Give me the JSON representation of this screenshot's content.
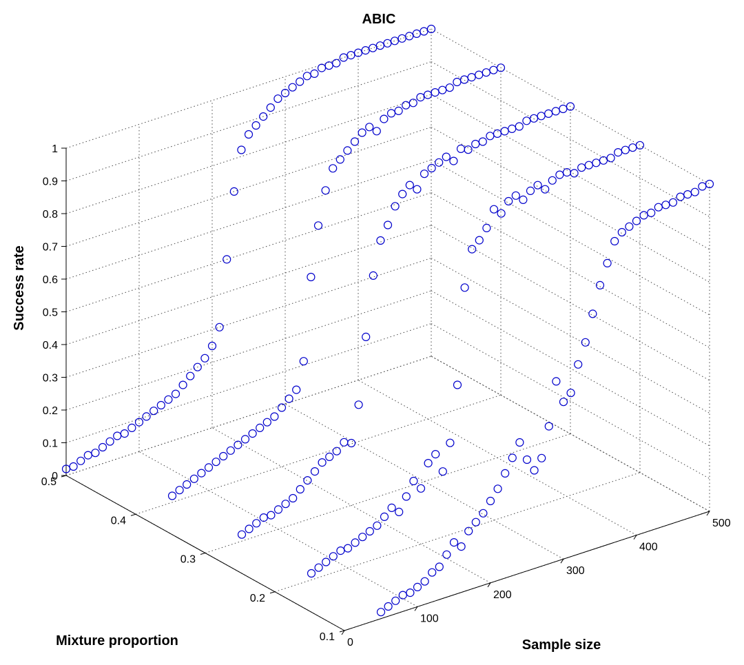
{
  "chart_data": {
    "type": "scatter",
    "title": "ABIC",
    "xlabel": "Sample size",
    "ylabel": "Mixture proportion",
    "zlabel": "Success rate",
    "x_ticks": [
      0,
      100,
      200,
      300,
      400,
      500
    ],
    "y_ticks": [
      0.1,
      0.2,
      0.3,
      0.4,
      0.5
    ],
    "z_ticks": [
      0,
      0.1,
      0.2,
      0.3,
      0.4,
      0.5,
      0.6,
      0.7,
      0.8,
      0.9,
      1
    ],
    "xlim": [
      0,
      500
    ],
    "ylim": [
      0.1,
      0.5
    ],
    "zlim": [
      0,
      1
    ],
    "grid": true,
    "marker": "circle",
    "marker_color": "#0000cc",
    "series": [
      {
        "mixture_proportion": 0.1,
        "x": [
          50,
          60,
          70,
          80,
          90,
          100,
          110,
          120,
          130,
          140,
          150,
          160,
          170,
          180,
          190,
          200,
          210,
          220,
          230,
          240,
          250,
          260,
          270,
          280,
          290,
          300,
          310,
          320,
          330,
          340,
          350,
          360,
          370,
          380,
          390,
          400,
          410,
          420,
          430,
          440,
          450,
          460,
          470,
          480,
          490,
          500
        ],
        "z": [
          0.02,
          0.03,
          0.04,
          0.05,
          0.05,
          0.06,
          0.07,
          0.09,
          0.1,
          0.13,
          0.16,
          0.14,
          0.18,
          0.2,
          0.22,
          0.25,
          0.28,
          0.32,
          0.36,
          0.4,
          0.34,
          0.3,
          0.33,
          0.42,
          0.55,
          0.48,
          0.5,
          0.58,
          0.64,
          0.72,
          0.8,
          0.86,
          0.92,
          0.94,
          0.95,
          0.96,
          0.97,
          0.97,
          0.98,
          0.98,
          0.98,
          0.99,
          0.99,
          0.99,
          1.0,
          1.0
        ]
      },
      {
        "mixture_proportion": 0.2,
        "x": [
          50,
          60,
          70,
          80,
          90,
          100,
          110,
          120,
          130,
          140,
          150,
          160,
          170,
          180,
          190,
          200,
          210,
          220,
          230,
          240,
          250,
          260,
          270,
          280,
          290,
          300,
          310,
          320,
          330,
          340,
          350,
          360,
          370,
          380,
          390,
          400,
          410,
          420,
          430,
          440,
          450,
          460,
          470,
          480,
          490,
          500
        ],
        "z": [
          0.02,
          0.03,
          0.04,
          0.05,
          0.06,
          0.06,
          0.07,
          0.08,
          0.09,
          0.1,
          0.12,
          0.14,
          0.12,
          0.16,
          0.2,
          0.17,
          0.24,
          0.26,
          0.2,
          0.28,
          0.45,
          0.74,
          0.85,
          0.87,
          0.9,
          0.95,
          0.93,
          0.96,
          0.97,
          0.95,
          0.97,
          0.98,
          0.96,
          0.98,
          0.99,
          0.99,
          0.98,
          0.99,
          0.99,
          0.99,
          0.99,
          0.99,
          1.0,
          1.0,
          1.0,
          1.0
        ]
      },
      {
        "mixture_proportion": 0.3,
        "x": [
          50,
          60,
          70,
          80,
          90,
          100,
          110,
          120,
          130,
          140,
          150,
          160,
          170,
          180,
          190,
          200,
          210,
          220,
          230,
          240,
          250,
          260,
          270,
          280,
          290,
          300,
          310,
          320,
          330,
          340,
          350,
          360,
          370,
          380,
          390,
          400,
          410,
          420,
          430,
          440,
          450,
          460,
          470,
          480,
          490,
          500
        ],
        "z": [
          0.02,
          0.03,
          0.04,
          0.05,
          0.05,
          0.06,
          0.07,
          0.08,
          0.1,
          0.12,
          0.14,
          0.16,
          0.17,
          0.18,
          0.2,
          0.19,
          0.3,
          0.5,
          0.68,
          0.78,
          0.82,
          0.87,
          0.9,
          0.92,
          0.9,
          0.94,
          0.95,
          0.96,
          0.97,
          0.95,
          0.98,
          0.97,
          0.98,
          0.98,
          0.99,
          0.99,
          0.99,
          0.99,
          0.99,
          1.0,
          1.0,
          1.0,
          1.0,
          1.0,
          1.0,
          1.0
        ]
      },
      {
        "mixture_proportion": 0.4,
        "x": [
          50,
          60,
          70,
          80,
          90,
          100,
          110,
          120,
          130,
          140,
          150,
          160,
          170,
          180,
          190,
          200,
          210,
          220,
          230,
          240,
          250,
          260,
          270,
          280,
          290,
          300,
          310,
          320,
          330,
          340,
          350,
          360,
          370,
          380,
          390,
          400,
          410,
          420,
          430,
          440,
          450,
          460,
          470,
          480,
          490,
          500
        ],
        "z": [
          0.02,
          0.03,
          0.04,
          0.05,
          0.06,
          0.07,
          0.08,
          0.09,
          0.1,
          0.11,
          0.12,
          0.13,
          0.14,
          0.15,
          0.16,
          0.18,
          0.2,
          0.22,
          0.3,
          0.55,
          0.7,
          0.8,
          0.86,
          0.88,
          0.9,
          0.92,
          0.94,
          0.95,
          0.93,
          0.96,
          0.97,
          0.97,
          0.98,
          0.98,
          0.99,
          0.99,
          0.99,
          0.99,
          0.99,
          1.0,
          1.0,
          1.0,
          1.0,
          1.0,
          1.0,
          1.0
        ]
      },
      {
        "mixture_proportion": 0.5,
        "x": [
          0,
          10,
          20,
          30,
          40,
          50,
          60,
          70,
          80,
          90,
          100,
          110,
          120,
          130,
          140,
          150,
          160,
          170,
          180,
          190,
          200,
          210,
          220,
          230,
          240,
          250,
          260,
          270,
          280,
          290,
          300,
          310,
          320,
          330,
          340,
          350,
          360,
          370,
          380,
          390,
          400,
          410,
          420,
          430,
          440,
          450,
          460,
          470,
          480,
          490,
          500
        ],
        "z": [
          0.02,
          0.02,
          0.03,
          0.04,
          0.04,
          0.05,
          0.06,
          0.07,
          0.07,
          0.08,
          0.09,
          0.1,
          0.11,
          0.12,
          0.13,
          0.14,
          0.16,
          0.18,
          0.2,
          0.22,
          0.25,
          0.3,
          0.5,
          0.7,
          0.82,
          0.86,
          0.88,
          0.9,
          0.92,
          0.94,
          0.95,
          0.96,
          0.97,
          0.98,
          0.98,
          0.99,
          0.99,
          0.99,
          1.0,
          1.0,
          1.0,
          1.0,
          1.0,
          1.0,
          1.0,
          1.0,
          1.0,
          1.0,
          1.0,
          1.0,
          1.0
        ]
      }
    ]
  }
}
